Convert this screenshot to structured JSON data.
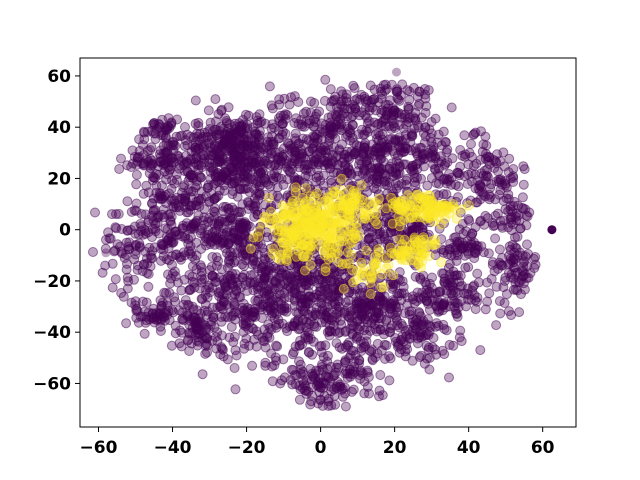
{
  "chart_data": {
    "type": "scatter",
    "title": "",
    "xlabel": "",
    "ylabel": "",
    "xlim": [
      -65,
      69
    ],
    "ylim": [
      -77,
      67
    ],
    "x_ticks": [
      -60,
      -40,
      -20,
      0,
      20,
      40,
      60
    ],
    "y_ticks": [
      -60,
      -40,
      -20,
      0,
      20,
      40,
      60
    ],
    "x_tick_labels": [
      "−60",
      "−40",
      "−20",
      "0",
      "20",
      "40",
      "60"
    ],
    "y_tick_labels": [
      "−60",
      "−40",
      "−20",
      "0",
      "20",
      "40",
      "60"
    ],
    "grid": false,
    "legend": "none",
    "marker_alpha": 0.35,
    "colors": {
      "class_0": "#440154",
      "class_1": "#fde725"
    },
    "series": [
      {
        "class": 0,
        "color": "#440154",
        "clusters": [
          {
            "cx": -25,
            "cy": 35,
            "sx": 6,
            "sy": 5,
            "n": 160
          },
          {
            "cx": -42,
            "cy": 27,
            "sx": 5,
            "sy": 4,
            "n": 110
          },
          {
            "cx": -45,
            "cy": 40,
            "sx": 4,
            "sy": 3,
            "n": 60
          },
          {
            "cx": -24,
            "cy": 22,
            "sx": 5,
            "sy": 4,
            "n": 120
          },
          {
            "cx": -5,
            "cy": 30,
            "sx": 12,
            "sy": 10,
            "n": 320
          },
          {
            "cx": 18,
            "cy": 30,
            "sx": 12,
            "sy": 10,
            "n": 320
          },
          {
            "cx": 17,
            "cy": 50,
            "sx": 7,
            "sy": 4,
            "n": 90
          },
          {
            "cx": 45,
            "cy": 20,
            "sx": 6,
            "sy": 8,
            "n": 110
          },
          {
            "cx": -40,
            "cy": 12,
            "sx": 5,
            "sy": 4,
            "n": 70
          },
          {
            "cx": -25,
            "cy": 0,
            "sx": 7,
            "sy": 6,
            "n": 150
          },
          {
            "cx": -45,
            "cy": -5,
            "sx": 7,
            "sy": 8,
            "n": 140
          },
          {
            "cx": -20,
            "cy": -25,
            "sx": 10,
            "sy": 12,
            "n": 330
          },
          {
            "cx": 0,
            "cy": -25,
            "sx": 10,
            "sy": 12,
            "n": 330
          },
          {
            "cx": -45,
            "cy": -33,
            "sx": 4,
            "sy": 3,
            "n": 60
          },
          {
            "cx": -32,
            "cy": -40,
            "sx": 5,
            "sy": 4,
            "n": 60
          },
          {
            "cx": 15,
            "cy": -30,
            "sx": 6,
            "sy": 6,
            "n": 120
          },
          {
            "cx": 25,
            "cy": -40,
            "sx": 6,
            "sy": 5,
            "n": 100
          },
          {
            "cx": 35,
            "cy": -25,
            "sx": 6,
            "sy": 5,
            "n": 90
          },
          {
            "cx": 0,
            "cy": -60,
            "sx": 5,
            "sy": 4,
            "n": 80
          },
          {
            "cx": 8,
            "cy": -55,
            "sx": 5,
            "sy": 5,
            "n": 60
          },
          {
            "cx": 20,
            "cy": 0,
            "sx": 5,
            "sy": 6,
            "n": 130
          },
          {
            "cx": 38,
            "cy": -7,
            "sx": 3,
            "sy": 3,
            "n": 50
          },
          {
            "cx": 53,
            "cy": -15,
            "sx": 3,
            "sy": 5,
            "n": 70
          },
          {
            "cx": 52,
            "cy": 5,
            "sx": 3,
            "sy": 3,
            "n": 35
          },
          {
            "cx": 0,
            "cy": 0,
            "sx": 25,
            "sy": 28,
            "n": 500
          }
        ]
      },
      {
        "class": 1,
        "color": "#fde725",
        "clusters": [
          {
            "cx": -3,
            "cy": 0,
            "sx": 6,
            "sy": 6,
            "n": 280
          },
          {
            "cx": 8,
            "cy": 9,
            "sx": 4,
            "sy": 4,
            "n": 80
          },
          {
            "cx": 28,
            "cy": 8,
            "sx": 5,
            "sy": 3,
            "n": 110
          },
          {
            "cx": 25,
            "cy": -8,
            "sx": 4,
            "sy": 3,
            "n": 60
          },
          {
            "cx": 12,
            "cy": -15,
            "sx": 4,
            "sy": 4,
            "n": 40
          }
        ]
      }
    ]
  }
}
